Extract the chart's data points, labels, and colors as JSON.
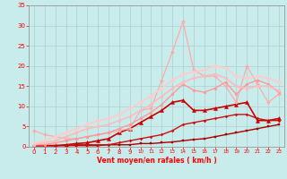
{
  "xlabel": "Vent moyen/en rafales ( km/h )",
  "xlim": [
    -0.5,
    23.5
  ],
  "ylim": [
    0,
    35
  ],
  "yticks": [
    0,
    5,
    10,
    15,
    20,
    25,
    30,
    35
  ],
  "xticks": [
    0,
    1,
    2,
    3,
    4,
    5,
    6,
    7,
    8,
    9,
    10,
    11,
    12,
    13,
    14,
    15,
    16,
    17,
    18,
    19,
    20,
    21,
    22,
    23
  ],
  "bg_color": "#c8ecec",
  "grid_color": "#aacccc",
  "lines": [
    {
      "x": [
        0,
        1,
        2,
        3,
        4,
        5,
        6,
        7,
        8,
        9,
        10,
        11,
        12,
        13,
        14,
        15,
        16,
        17,
        18,
        19,
        20,
        21,
        22,
        23
      ],
      "y": [
        0.3,
        0.3,
        0.3,
        0.3,
        0.3,
        0.3,
        0.3,
        0.5,
        0.5,
        0.5,
        0.8,
        0.8,
        1.0,
        1.2,
        1.5,
        1.8,
        2.0,
        2.5,
        3.0,
        3.5,
        4.0,
        4.5,
        5.0,
        5.5
      ],
      "color": "#aa0000",
      "lw": 1.0,
      "marker": "s",
      "ms": 1.8
    },
    {
      "x": [
        0,
        1,
        2,
        3,
        4,
        5,
        6,
        7,
        8,
        9,
        10,
        11,
        12,
        13,
        14,
        15,
        16,
        17,
        18,
        19,
        20,
        21,
        22,
        23
      ],
      "y": [
        0.3,
        0.3,
        0.3,
        0.3,
        0.5,
        0.5,
        0.5,
        0.5,
        1.0,
        1.5,
        2.0,
        2.5,
        3.0,
        4.0,
        5.5,
        6.0,
        6.5,
        7.0,
        7.5,
        8.0,
        8.0,
        7.0,
        6.5,
        6.5
      ],
      "color": "#cc1111",
      "lw": 1.0,
      "marker": "P",
      "ms": 2.0
    },
    {
      "x": [
        0,
        1,
        2,
        3,
        4,
        5,
        6,
        7,
        8,
        9,
        10,
        11,
        12,
        13,
        14,
        15,
        16,
        17,
        18,
        19,
        20,
        21,
        22,
        23
      ],
      "y": [
        0.3,
        0.3,
        0.3,
        0.5,
        0.8,
        1.0,
        1.5,
        2.0,
        3.5,
        4.5,
        6.0,
        7.5,
        9.0,
        11.0,
        11.5,
        9.0,
        9.0,
        9.5,
        10.0,
        10.5,
        11.0,
        6.5,
        6.5,
        7.0
      ],
      "color": "#cc0000",
      "lw": 1.2,
      "marker": "^",
      "ms": 3.0
    },
    {
      "x": [
        0,
        1,
        2,
        3,
        4,
        5,
        6,
        7,
        8,
        9,
        10,
        11,
        12,
        13,
        14,
        15,
        16,
        17,
        18,
        19,
        20,
        21,
        22,
        23
      ],
      "y": [
        4.0,
        3.0,
        2.5,
        2.0,
        2.0,
        2.5,
        3.0,
        3.5,
        4.0,
        4.5,
        9.0,
        9.5,
        16.5,
        23.5,
        31.0,
        19.0,
        17.5,
        17.5,
        15.0,
        11.0,
        20.0,
        15.5,
        11.0,
        13.0
      ],
      "color": "#ffaaaa",
      "lw": 0.9,
      "marker": "D",
      "ms": 2.0
    },
    {
      "x": [
        0,
        1,
        2,
        3,
        4,
        5,
        6,
        7,
        8,
        9,
        10,
        11,
        12,
        13,
        14,
        15,
        16,
        17,
        18,
        19,
        20,
        21,
        22,
        23
      ],
      "y": [
        0.5,
        0.5,
        1.0,
        1.5,
        2.0,
        2.5,
        3.0,
        3.5,
        4.5,
        5.5,
        7.0,
        8.5,
        10.5,
        13.0,
        15.5,
        14.0,
        13.5,
        14.5,
        16.0,
        13.0,
        15.5,
        16.5,
        15.5,
        13.5
      ],
      "color": "#ff9999",
      "lw": 1.0,
      "marker": "o",
      "ms": 2.0
    },
    {
      "x": [
        0,
        1,
        2,
        3,
        4,
        5,
        6,
        7,
        8,
        9,
        10,
        11,
        12,
        13,
        14,
        15,
        16,
        17,
        18,
        19,
        20,
        21,
        22,
        23
      ],
      "y": [
        0.5,
        1.0,
        1.5,
        2.5,
        3.5,
        4.5,
        5.0,
        5.5,
        6.5,
        7.5,
        9.0,
        10.5,
        12.5,
        14.5,
        16.0,
        17.0,
        17.5,
        18.0,
        17.0,
        15.0,
        14.5,
        15.0,
        15.0,
        14.0
      ],
      "color": "#ffbbbb",
      "lw": 1.2,
      "marker": "o",
      "ms": 2.2
    },
    {
      "x": [
        0,
        1,
        2,
        3,
        4,
        5,
        6,
        7,
        8,
        9,
        10,
        11,
        12,
        13,
        14,
        15,
        16,
        17,
        18,
        19,
        20,
        21,
        22,
        23
      ],
      "y": [
        1.0,
        1.5,
        2.5,
        3.5,
        4.5,
        5.5,
        6.5,
        7.0,
        8.0,
        9.5,
        11.0,
        12.5,
        14.5,
        16.5,
        18.0,
        18.5,
        19.0,
        20.0,
        19.5,
        17.5,
        17.0,
        17.5,
        17.0,
        16.0
      ],
      "color": "#ffcccc",
      "lw": 1.3,
      "marker": "D",
      "ms": 2.2
    }
  ]
}
